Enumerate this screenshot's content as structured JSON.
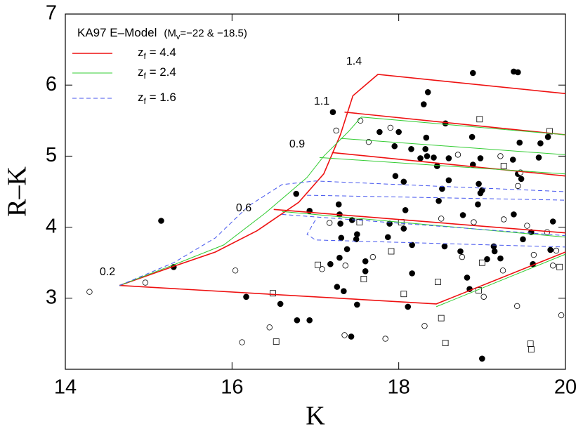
{
  "chart_data": {
    "type": "scatter",
    "title": [
      "KA97  E–Model",
      "(M",
      "v",
      "=−22 & −18.5)"
    ],
    "x_label": "K",
    "y_label": "R–K",
    "xlim": [
      14,
      20
    ],
    "ylim": [
      2,
      7
    ],
    "xticks": [
      14,
      16,
      18,
      20
    ],
    "yticks": [
      3,
      4,
      5,
      6,
      7
    ],
    "annotations": [
      "0.2",
      "0.6",
      "0.9",
      "1.1",
      "1.4"
    ],
    "series": [
      {
        "name": [
          "z",
          "f",
          " = 4.4"
        ],
        "color": "#ee1111",
        "dash": false,
        "x": [
          14.65,
          15.3,
          15.8,
          16.3,
          16.8,
          17.1,
          17.3,
          17.45,
          17.75,
          20,
          null,
          17.35,
          20,
          null,
          17.2,
          20,
          null,
          16.5,
          20,
          null,
          14.65,
          18.45,
          20
        ],
        "values": [
          3.18,
          3.45,
          3.65,
          3.95,
          4.35,
          4.75,
          5.3,
          5.85,
          6.15,
          5.88,
          null,
          5.62,
          5.3,
          null,
          5.05,
          4.72,
          null,
          4.25,
          3.92,
          null,
          3.18,
          2.92,
          3.65
        ]
      },
      {
        "name": [
          "z",
          "f",
          " = 2.4"
        ],
        "color": "#33cc33",
        "dash": false,
        "x": [
          14.65,
          15.3,
          15.9,
          16.4,
          16.9,
          17.1,
          17.4,
          17.55,
          20,
          null,
          17.3,
          20,
          null,
          17.05,
          20,
          null,
          16.6,
          20,
          null,
          18.45,
          20
        ],
        "values": [
          3.18,
          3.47,
          3.75,
          4.2,
          4.7,
          5.0,
          5.35,
          5.55,
          5.3,
          null,
          5.25,
          5.02,
          null,
          4.98,
          4.75,
          null,
          4.22,
          3.86,
          null,
          2.88,
          3.62
        ]
      },
      {
        "name": [
          "z",
          "f",
          " = 1.6"
        ],
        "color": "#4455ee",
        "dash": true,
        "x": [
          14.65,
          15.3,
          15.8,
          16.2,
          16.6,
          17.0,
          20,
          null,
          16.9,
          20,
          null,
          16.6,
          20,
          null,
          17.0,
          16.9,
          17.0,
          20
        ],
        "values": [
          3.18,
          3.5,
          3.85,
          4.3,
          4.6,
          4.65,
          4.5,
          null,
          4.45,
          4.38,
          null,
          4.18,
          3.88,
          null,
          4.1,
          3.9,
          3.82,
          3.72
        ]
      }
    ],
    "points": [
      {
        "marker": "filled-circle",
        "x": [
          15.15,
          15.3,
          16.17,
          16.58,
          16.78,
          16.93,
          16.77,
          16.93,
          17.21,
          17.28,
          17.29,
          17.3,
          17.31,
          17.29,
          17.18,
          17.26,
          17.34,
          17.43,
          17.38,
          17.44,
          17.49,
          17.5,
          17.5,
          17.6,
          17.6,
          17.77,
          17.89,
          17.87,
          17.95,
          17.96,
          18.0,
          18.06,
          18.08,
          18.06,
          18.11,
          18.16,
          18.16,
          18.15,
          18.26,
          18.3,
          18.35,
          18.32,
          18.33,
          18.34,
          18.42,
          18.46,
          18.48,
          18.52,
          18.56,
          18.6,
          18.6,
          18.55,
          18.74,
          18.77,
          18.82,
          18.85,
          18.88,
          18.89,
          18.95,
          18.96,
          18.98,
          19.0,
          18.98,
          19.06,
          19.0,
          19.14,
          19.22,
          19.15,
          18.89,
          19.38,
          19.43,
          19.37,
          19.43,
          19.45,
          19.47,
          19.38,
          19.49,
          19.59,
          19.68,
          19.7,
          19.79,
          19.85,
          19.82,
          19.61
        ],
        "values": [
          4.09,
          3.44,
          3.02,
          2.92,
          2.69,
          2.69,
          4.47,
          4.23,
          5.62,
          4.32,
          4.18,
          4.05,
          3.85,
          3.57,
          3.48,
          3.16,
          3.1,
          2.46,
          3.69,
          4.1,
          3.83,
          3.9,
          2.91,
          3.52,
          3.38,
          5.34,
          4.05,
          3.86,
          5.14,
          4.72,
          5.34,
          4.64,
          4.24,
          3.98,
          2.88,
          3.35,
          3.75,
          5.1,
          4.97,
          5.73,
          5.9,
          5.1,
          5.26,
          5.0,
          4.98,
          4.86,
          4.37,
          4.54,
          5.46,
          4.66,
          4.97,
          3.73,
          3.66,
          4.17,
          3.29,
          3.13,
          5.27,
          4.88,
          4.32,
          4.61,
          4.48,
          4.52,
          4.97,
          3.55,
          2.15,
          3.73,
          3.56,
          3.66,
          6.17,
          6.19,
          6.18,
          4.95,
          4.75,
          5.19,
          4.68,
          4.18,
          3.83,
          3.93,
          4.98,
          5.18,
          5.27,
          4.08,
          3.68,
          3.48
        ]
      },
      {
        "marker": "open-circle",
        "x": [
          14.29,
          14.96,
          16.04,
          16.12,
          16.45,
          17.25,
          17.17,
          17.08,
          17.35,
          17.36,
          17.54,
          17.64,
          17.69,
          17.84,
          17.9,
          18.31,
          18.51,
          18.71,
          18.76,
          18.9,
          19.02,
          19.22,
          19.25,
          19.26,
          19.43,
          19.42,
          19.46,
          19.54,
          19.62,
          19.78,
          19.85,
          19.89,
          19.95
        ],
        "values": [
          3.09,
          3.22,
          3.39,
          2.38,
          2.59,
          5.36,
          4.06,
          3.41,
          2.48,
          3.46,
          5.5,
          5.2,
          3.58,
          2.43,
          5.4,
          2.61,
          4.12,
          5.02,
          3.58,
          4.07,
          3.02,
          5.0,
          3.39,
          4.11,
          4.58,
          2.89,
          4.77,
          4.02,
          3.61,
          3.93,
          3.46,
          3.67,
          2.76
        ]
      },
      {
        "marker": "open-square",
        "x": [
          16.49,
          16.53,
          17.03,
          17.58,
          17.53,
          17.91,
          18.03,
          18.06,
          18.47,
          18.51,
          18.56,
          18.97,
          18.96,
          19.0,
          19.26,
          19.58,
          19.59,
          19.81,
          19.93
        ],
        "values": [
          3.07,
          2.39,
          3.47,
          3.27,
          4.07,
          3.66,
          4.07,
          3.06,
          3.23,
          2.72,
          2.37,
          5.52,
          3.11,
          3.5,
          4.86,
          2.36,
          2.28,
          5.35,
          3.44
        ]
      }
    ]
  }
}
